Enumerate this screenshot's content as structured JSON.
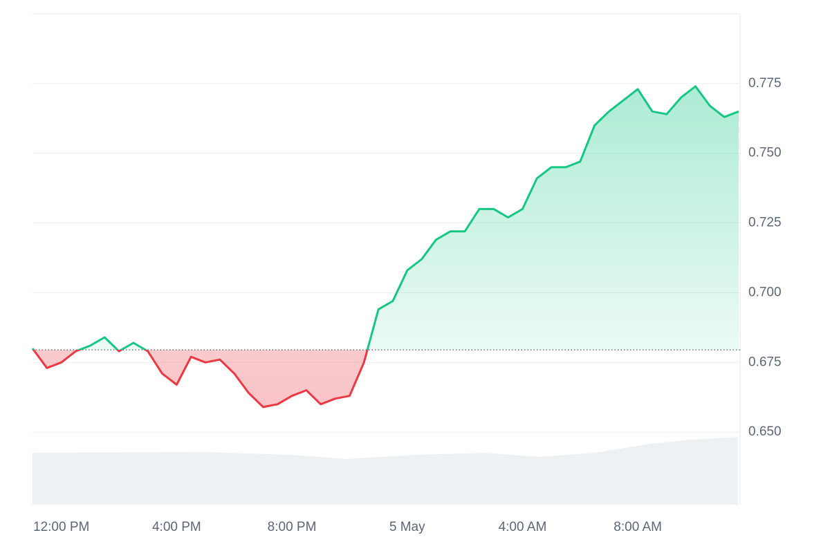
{
  "chart_data": {
    "type": "line",
    "categories": [
      null,
      null,
      "12:00 PM",
      null,
      null,
      null,
      null,
      null,
      null,
      null,
      "4:00 PM",
      null,
      null,
      null,
      null,
      null,
      null,
      null,
      "8:00 PM",
      null,
      null,
      null,
      null,
      null,
      null,
      null,
      "5 May",
      null,
      null,
      null,
      null,
      null,
      null,
      null,
      "4:00 AM",
      null,
      null,
      null,
      null,
      null,
      null,
      null,
      "8:00 AM",
      null,
      null,
      null,
      null,
      null,
      null,
      null
    ],
    "values": [
      0.68,
      0.673,
      0.675,
      0.679,
      0.681,
      0.684,
      0.679,
      0.682,
      0.679,
      0.671,
      0.667,
      0.677,
      0.675,
      0.676,
      0.671,
      0.664,
      0.659,
      0.66,
      0.663,
      0.665,
      0.66,
      0.662,
      0.663,
      0.675,
      0.694,
      0.697,
      0.708,
      0.712,
      0.719,
      0.722,
      0.722,
      0.73,
      0.73,
      0.727,
      0.73,
      0.741,
      0.745,
      0.745,
      0.747,
      0.76,
      0.765,
      0.769,
      0.773,
      0.765,
      0.764,
      0.77,
      0.774,
      0.767,
      0.763,
      0.765
    ],
    "reference_line": 0.6795,
    "color_above": "#16c784",
    "color_below": "#ea3943",
    "ylim": [
      0.624,
      0.8
    ],
    "yticks": [
      {
        "value": 0.65,
        "label": "0.650"
      },
      0.675,
      {
        "value": 0.7,
        "label": "0.700"
      },
      0.725,
      {
        "value": 0.75,
        "label": "0.750"
      },
      0.775
    ],
    "grid": true
  }
}
